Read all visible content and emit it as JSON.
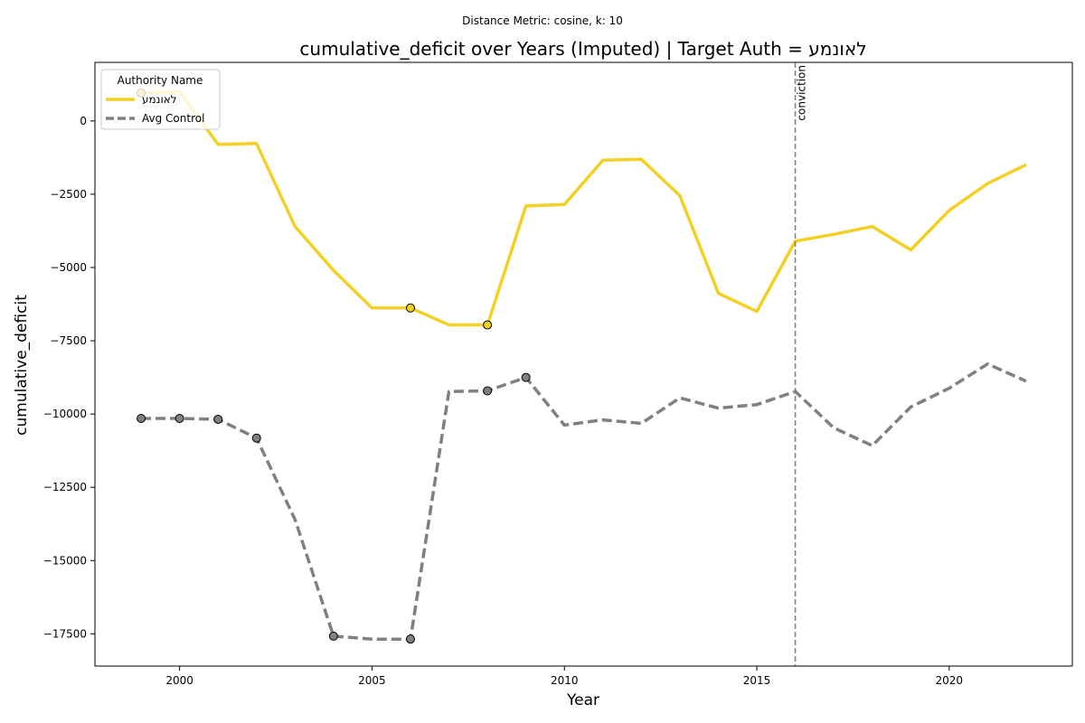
{
  "chart_data": {
    "type": "line",
    "suptitle": "Distance Metric: cosine, k: 10",
    "title": "cumulative_deficit over Years (Imputed) | Target Auth = לאונמע",
    "xlabel": "Year",
    "ylabel": "cumulative_deficit",
    "xlim": [
      1997.8,
      2023.2
    ],
    "ylim": [
      -18600,
      2000
    ],
    "x_ticks": [
      2000,
      2005,
      2010,
      2015,
      2020
    ],
    "y_ticks": [
      0,
      -2500,
      -5000,
      -7500,
      -10000,
      -12500,
      -15000,
      -17500
    ],
    "x_tick_labels": [
      "2000",
      "2005",
      "2010",
      "2015",
      "2020"
    ],
    "y_tick_labels": [
      "0",
      "−2500",
      "−5000",
      "−7500",
      "−10000",
      "−12500",
      "−15000",
      "−17500"
    ],
    "grid": false,
    "legend": {
      "title": "Authority Name",
      "position": "top-left"
    },
    "x": [
      1999,
      2000,
      2001,
      2002,
      2003,
      2004,
      2005,
      2006,
      2007,
      2008,
      2009,
      2010,
      2011,
      2012,
      2013,
      2014,
      2015,
      2016,
      2017,
      2018,
      2019,
      2020,
      2021,
      2022
    ],
    "series": [
      {
        "name": "לאונמע",
        "color": "#f2d024",
        "style": "solid",
        "values": [
          950,
          1000,
          -800,
          -770,
          -3600,
          -5100,
          -6380,
          -6380,
          -6960,
          -6960,
          -2900,
          -2850,
          -1340,
          -1310,
          -2550,
          -5880,
          -6500,
          -4100,
          -3870,
          -3600,
          -4400,
          -3050,
          -2130,
          -1490
        ],
        "marked_x": [
          1999,
          2006,
          2008
        ]
      },
      {
        "name": "Avg Control",
        "color": "#808080",
        "style": "dashed",
        "values": [
          -10150,
          -10150,
          -10180,
          -10820,
          -13600,
          -17580,
          -17680,
          -17680,
          -9230,
          -9210,
          -8750,
          -10380,
          -10200,
          -10320,
          -9450,
          -9800,
          -9680,
          -9230,
          -10470,
          -11080,
          -9760,
          -9120,
          -8290,
          -8880
        ],
        "marked_x": [
          1999,
          2000,
          2001,
          2002,
          2004,
          2006,
          2008,
          2009
        ]
      }
    ],
    "annotations": [
      {
        "type": "vline",
        "x": 2016,
        "label": "conviction",
        "color": "#808080"
      }
    ]
  }
}
